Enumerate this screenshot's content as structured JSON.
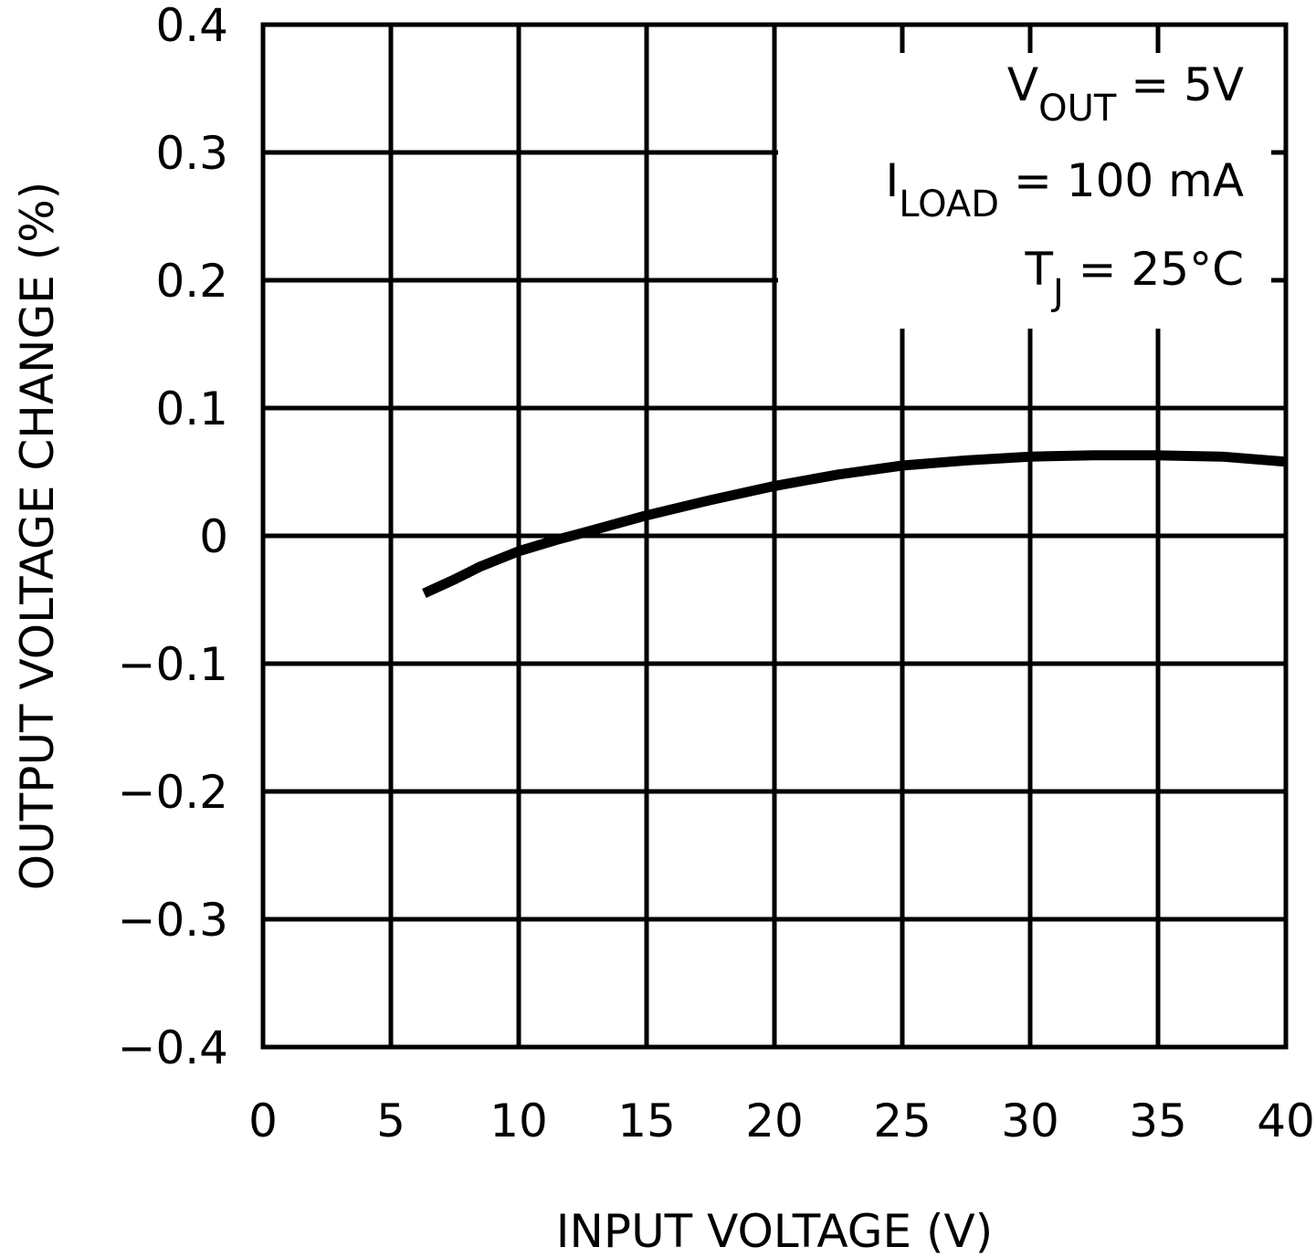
{
  "chart_data": {
    "type": "line",
    "title": "",
    "xlabel": "INPUT VOLTAGE (V)",
    "ylabel": "OUTPUT VOLTAGE CHANGE (%)",
    "xlim": [
      0,
      40
    ],
    "ylim": [
      -0.4,
      0.4
    ],
    "x_ticks": [
      0,
      5,
      10,
      15,
      20,
      25,
      30,
      35,
      40
    ],
    "x_tick_labels": [
      "0",
      "5",
      "10",
      "15",
      "20",
      "25",
      "30",
      "35",
      "40"
    ],
    "y_ticks": [
      0.4,
      0.3,
      0.2,
      0.1,
      0,
      -0.1,
      -0.2,
      -0.3,
      -0.4
    ],
    "y_tick_labels": [
      "0.4",
      "0.3",
      "0.2",
      "0.1",
      "0",
      "−0.1",
      "−0.2",
      "−0.3",
      "−0.4"
    ],
    "grid": true,
    "line_color": "#000000",
    "series": [
      {
        "x": [
          6.3,
          7.5,
          8.5,
          10,
          11.5,
          13,
          15,
          17.5,
          20,
          22.5,
          25,
          27.5,
          30,
          32.5,
          35,
          37.5,
          40
        ],
        "y": [
          -0.045,
          -0.034,
          -0.024,
          -0.012,
          -0.003,
          0.005,
          0.016,
          0.028,
          0.039,
          0.048,
          0.055,
          0.059,
          0.062,
          0.063,
          0.063,
          0.062,
          0.058
        ]
      }
    ],
    "annotations": [
      {
        "main": "V",
        "sub": "OUT",
        "rest": " = 5V"
      },
      {
        "main": "I",
        "sub": "LOAD",
        "rest": " = 100 mA"
      },
      {
        "main": "T",
        "sub": "J",
        "rest": " = 25°C"
      }
    ]
  }
}
